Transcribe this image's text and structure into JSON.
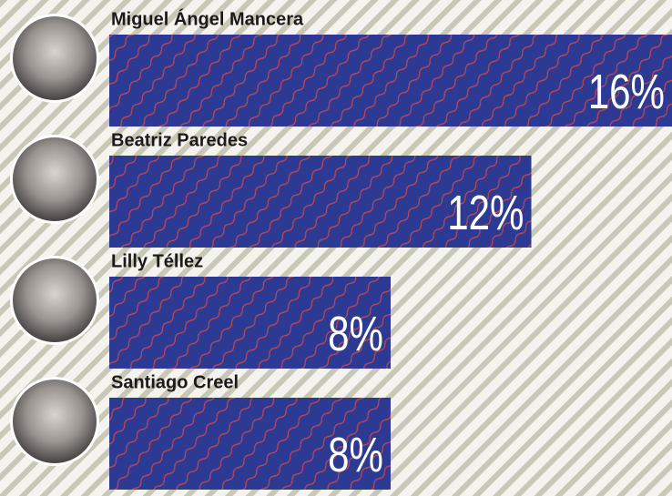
{
  "chart_data": {
    "type": "hbar",
    "categories": [
      "Miguel Ángel Mancera",
      "Beatriz Paredes",
      "Lilly Téllez",
      "Santiago Creel"
    ],
    "values": [
      16,
      12,
      8,
      8
    ],
    "value_labels": [
      "16%",
      "12%",
      "8%",
      "8%"
    ],
    "color": "#2d3a94"
  }
}
